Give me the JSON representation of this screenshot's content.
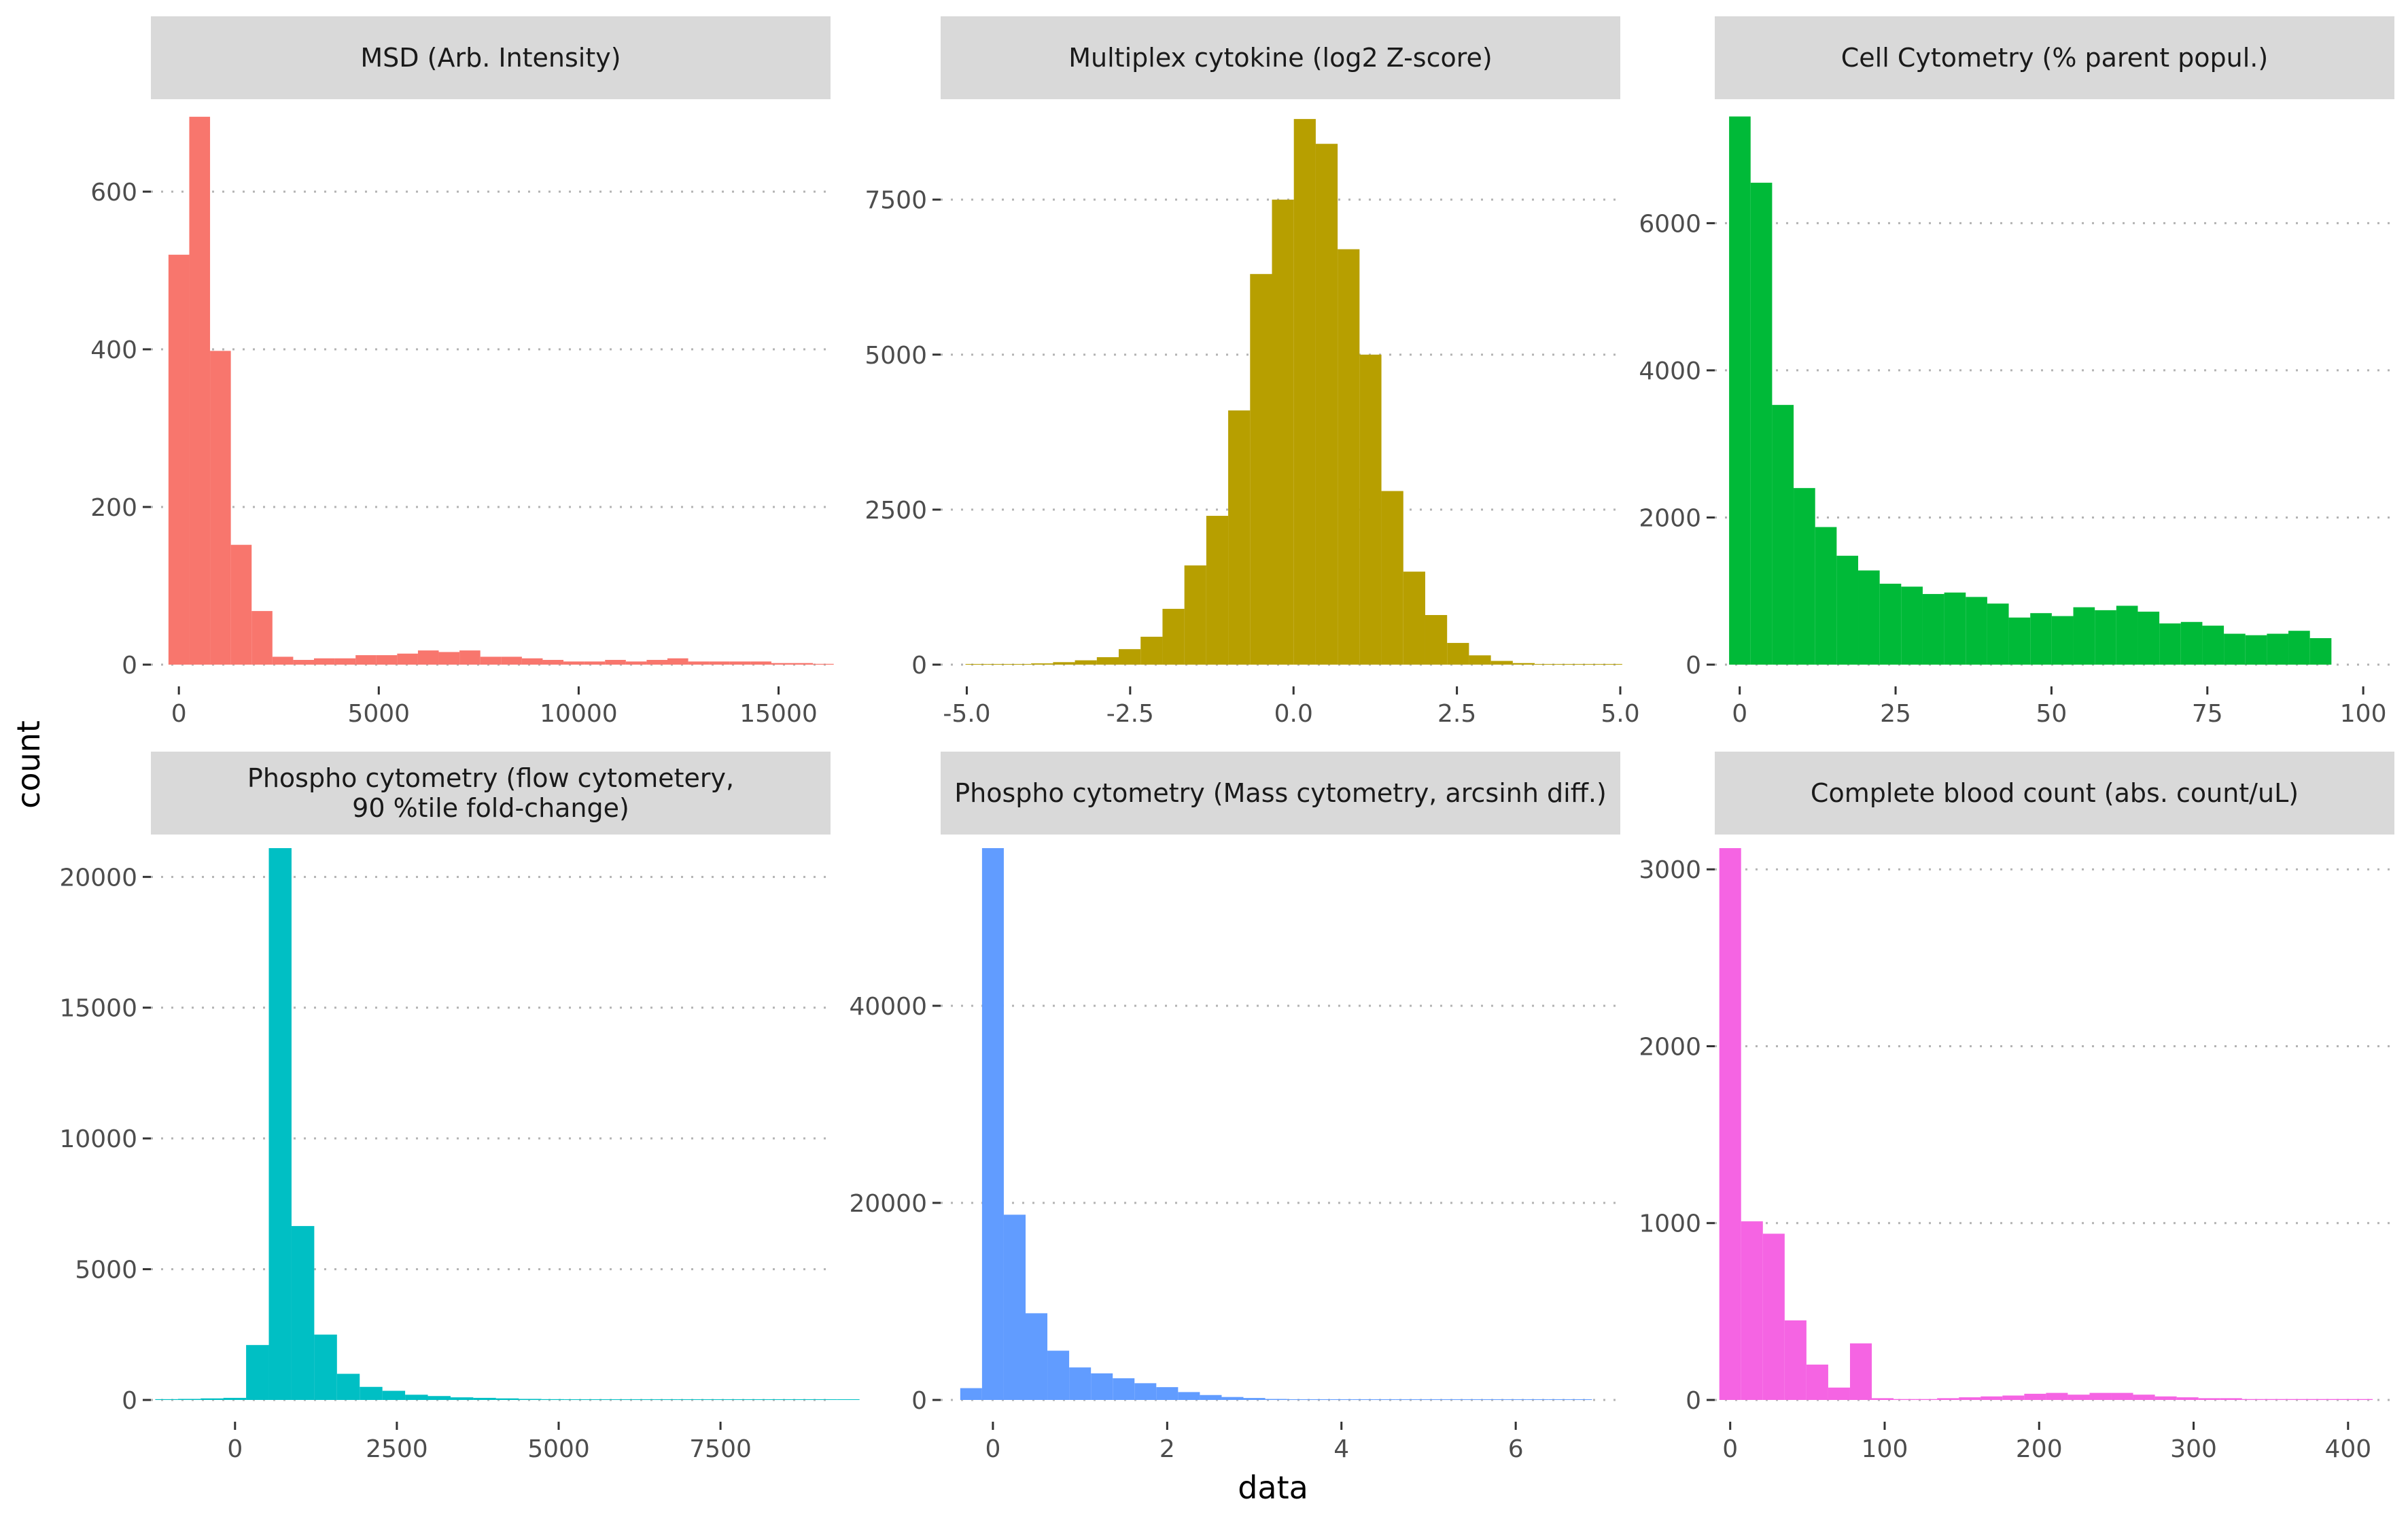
{
  "figure": {
    "xlabel": "data",
    "ylabel": "count"
  },
  "colors": {
    "strip_background": "#d9d9d9",
    "grid": "#b3b3b3",
    "tick": "#333333"
  },
  "chart_data": [
    {
      "type": "bar",
      "title_lines": [
        "MSD (Arb. Intensity)"
      ],
      "color": "#F8766D",
      "bin_width": 520,
      "x_start": -260,
      "values": [
        520,
        695,
        398,
        152,
        68,
        10,
        6,
        8,
        8,
        12,
        12,
        14,
        18,
        16,
        18,
        10,
        10,
        8,
        6,
        4,
        4,
        6,
        4,
        6,
        8,
        4,
        4,
        4,
        4,
        2,
        2,
        1
      ],
      "xlim": [
        -700,
        16300
      ],
      "ylim": [
        0,
        700
      ],
      "x_ticks": [
        0,
        5000,
        10000,
        15000
      ],
      "x_tick_labels": [
        "0",
        "5000",
        "10000",
        "15000"
      ],
      "y_ticks": [
        0,
        200,
        400,
        600
      ],
      "y_tick_labels": [
        "0",
        "200",
        "400",
        "600"
      ]
    },
    {
      "type": "bar",
      "title_lines": [
        "Multiplex cytokine (log2 Z-score)"
      ],
      "color": "#B79F00",
      "bin_width": 0.335,
      "x_start": -5.02,
      "values": [
        2,
        5,
        10,
        20,
        40,
        70,
        120,
        250,
        450,
        900,
        1600,
        2400,
        4100,
        6300,
        7500,
        8800,
        8400,
        6700,
        5000,
        2800,
        1500,
        800,
        350,
        150,
        60,
        25,
        10,
        5,
        2,
        1
      ],
      "xlim": [
        -5.4,
        5.0
      ],
      "ylim": [
        0,
        8900
      ],
      "x_ticks": [
        -5.0,
        -2.5,
        0.0,
        2.5,
        5.0
      ],
      "x_tick_labels": [
        "-5.0",
        "-2.5",
        "0.0",
        "2.5",
        "5.0"
      ],
      "y_ticks": [
        0,
        2500,
        5000,
        7500
      ],
      "y_tick_labels": [
        "0",
        "2500",
        "5000",
        "7500"
      ]
    },
    {
      "type": "bar",
      "title_lines": [
        "Cell Cytometry (% parent popul.)"
      ],
      "color": "#00BA38",
      "bin_width": 3.45,
      "x_start": -1.7,
      "values": [
        7450,
        6550,
        3530,
        2400,
        1870,
        1480,
        1280,
        1100,
        1060,
        960,
        980,
        920,
        830,
        640,
        700,
        660,
        780,
        740,
        800,
        720,
        560,
        580,
        530,
        420,
        400,
        420,
        460,
        360
      ],
      "xlim": [
        -4,
        105
      ],
      "ylim": [
        0,
        7500
      ],
      "x_ticks": [
        0,
        25,
        50,
        75,
        100
      ],
      "x_tick_labels": [
        "0",
        "25",
        "50",
        "75",
        "100"
      ],
      "y_ticks": [
        0,
        2000,
        4000,
        6000
      ],
      "y_tick_labels": [
        "0",
        "2000",
        "4000",
        "6000"
      ]
    },
    {
      "type": "bar",
      "title_lines": [
        "Phospho cytometry (flow cytometery,",
        "90 %tile fold-change)"
      ],
      "color": "#00BFC4",
      "bin_width": 351,
      "x_start": -1233,
      "values": [
        30,
        40,
        60,
        80,
        2100,
        21100,
        6650,
        2500,
        1000,
        500,
        350,
        200,
        150,
        100,
        80,
        60,
        40,
        30,
        20,
        20,
        10,
        10,
        10,
        10,
        5,
        5,
        5,
        5,
        5,
        5,
        5
      ],
      "xlim": [
        -1300,
        9200
      ],
      "ylim": [
        0,
        21100
      ],
      "x_ticks": [
        0,
        2500,
        5000,
        7500
      ],
      "x_tick_labels": [
        "0",
        "2500",
        "5000",
        "7500"
      ],
      "y_ticks": [
        0,
        5000,
        10000,
        15000,
        20000
      ],
      "y_tick_labels": [
        "0",
        "5000",
        "10000",
        "15000",
        "20000"
      ]
    },
    {
      "type": "bar",
      "title_lines": [
        "Phospho cytometry (Mass cytometry, arcsinh diff.)"
      ],
      "color": "#619CFF",
      "bin_width": 0.25,
      "x_start": -0.375,
      "values": [
        1200,
        56000,
        18800,
        8800,
        5000,
        3300,
        2700,
        2200,
        1700,
        1300,
        800,
        500,
        300,
        200,
        100,
        60,
        30,
        20,
        10,
        10,
        10,
        10,
        5,
        5,
        5,
        5,
        5,
        5,
        5
      ],
      "xlim": [
        -0.6,
        7.2
      ],
      "ylim": [
        0,
        56000
      ],
      "x_ticks": [
        0,
        2,
        4,
        6
      ],
      "x_tick_labels": [
        "0",
        "2",
        "4",
        "6"
      ],
      "y_ticks": [
        0,
        20000,
        40000
      ],
      "y_tick_labels": [
        "0",
        "20000",
        "40000"
      ]
    },
    {
      "type": "bar",
      "title_lines": [
        "Complete blood count (abs. count/uL)"
      ],
      "color": "#F564E3",
      "bin_width": 14.1,
      "x_start": -7.05,
      "values": [
        3120,
        1010,
        940,
        450,
        200,
        70,
        320,
        10,
        5,
        5,
        10,
        15,
        20,
        25,
        35,
        40,
        30,
        40,
        40,
        30,
        20,
        15,
        10,
        10,
        5,
        5,
        5,
        5,
        5,
        5
      ],
      "xlim": [
        -10,
        430
      ],
      "ylim": [
        0,
        3120
      ],
      "x_ticks": [
        0,
        100,
        200,
        300,
        400
      ],
      "x_tick_labels": [
        "0",
        "100",
        "200",
        "300",
        "400"
      ],
      "y_ticks": [
        0,
        1000,
        2000,
        3000
      ],
      "y_tick_labels": [
        "0",
        "1000",
        "2000",
        "3000"
      ]
    }
  ]
}
